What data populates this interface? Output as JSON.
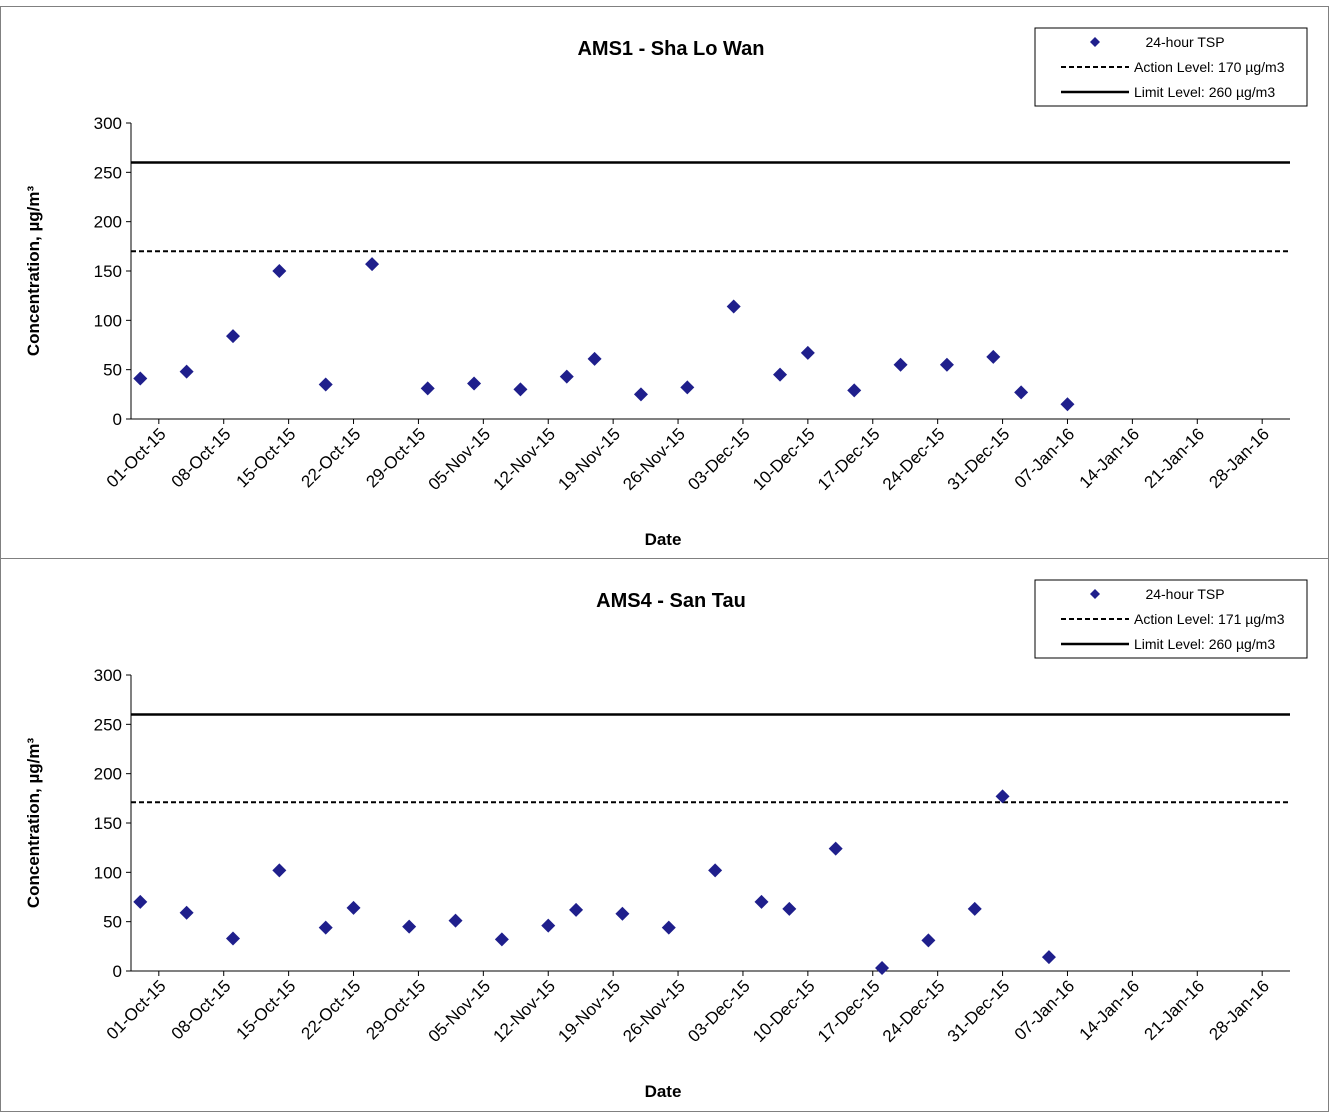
{
  "chart_data": [
    {
      "type": "scatter",
      "title": "AMS1 - Sha Lo Wan",
      "xlabel": "Date",
      "ylabel": "Concentration, µg/m³",
      "ylim": [
        0,
        300
      ],
      "yticks": [
        0,
        50,
        100,
        150,
        200,
        250,
        300
      ],
      "xlim": [
        "2015-09-28",
        "2016-01-31"
      ],
      "xtick_labels": [
        "01-Oct-15",
        "08-Oct-15",
        "15-Oct-15",
        "22-Oct-15",
        "29-Oct-15",
        "05-Nov-15",
        "12-Nov-15",
        "19-Nov-15",
        "26-Nov-15",
        "03-Dec-15",
        "10-Dec-15",
        "17-Dec-15",
        "24-Dec-15",
        "31-Dec-15",
        "07-Jan-16",
        "14-Jan-16",
        "21-Jan-16",
        "28-Jan-16"
      ],
      "grid": false,
      "legend": "top-right",
      "series": [
        {
          "name": "24-hour TSP",
          "marker": "diamond",
          "color": "#1f1f8c",
          "points": [
            [
              "2015-09-29",
              41
            ],
            [
              "2015-10-04",
              48
            ],
            [
              "2015-10-09",
              84
            ],
            [
              "2015-10-14",
              150
            ],
            [
              "2015-10-19",
              35
            ],
            [
              "2015-10-24",
              157
            ],
            [
              "2015-10-30",
              31
            ],
            [
              "2015-11-04",
              36
            ],
            [
              "2015-11-09",
              30
            ],
            [
              "2015-11-14",
              43
            ],
            [
              "2015-11-17",
              61
            ],
            [
              "2015-11-22",
              25
            ],
            [
              "2015-11-27",
              32
            ],
            [
              "2015-12-02",
              114
            ],
            [
              "2015-12-07",
              45
            ],
            [
              "2015-12-10",
              67
            ],
            [
              "2015-12-15",
              29
            ],
            [
              "2015-12-20",
              55
            ],
            [
              "2015-12-25",
              55
            ],
            [
              "2015-12-30",
              63
            ],
            [
              "2016-01-02",
              27
            ],
            [
              "2016-01-07",
              15
            ]
          ]
        },
        {
          "name": "Action Level: 170 µg/m3",
          "line": "dashed",
          "value": 170
        },
        {
          "name": "Limit Level: 260 µg/m3",
          "line": "solid",
          "value": 260
        }
      ]
    },
    {
      "type": "scatter",
      "title": "AMS4 - San Tau",
      "xlabel": "Date",
      "ylabel": "Concentration, µg/m³",
      "ylim": [
        0,
        300
      ],
      "yticks": [
        0,
        50,
        100,
        150,
        200,
        250,
        300
      ],
      "xlim": [
        "2015-09-28",
        "2016-01-31"
      ],
      "xtick_labels": [
        "01-Oct-15",
        "08-Oct-15",
        "15-Oct-15",
        "22-Oct-15",
        "29-Oct-15",
        "05-Nov-15",
        "12-Nov-15",
        "19-Nov-15",
        "26-Nov-15",
        "03-Dec-15",
        "10-Dec-15",
        "17-Dec-15",
        "24-Dec-15",
        "31-Dec-15",
        "07-Jan-16",
        "14-Jan-16",
        "21-Jan-16",
        "28-Jan-16"
      ],
      "grid": false,
      "legend": "top-right",
      "series": [
        {
          "name": "24-hour TSP",
          "marker": "diamond",
          "color": "#1f1f8c",
          "points": [
            [
              "2015-09-29",
              70
            ],
            [
              "2015-10-04",
              59
            ],
            [
              "2015-10-09",
              33
            ],
            [
              "2015-10-14",
              102
            ],
            [
              "2015-10-19",
              44
            ],
            [
              "2015-10-22",
              64
            ],
            [
              "2015-10-28",
              45
            ],
            [
              "2015-11-02",
              51
            ],
            [
              "2015-11-07",
              32
            ],
            [
              "2015-11-12",
              46
            ],
            [
              "2015-11-15",
              62
            ],
            [
              "2015-11-20",
              58
            ],
            [
              "2015-11-25",
              44
            ],
            [
              "2015-11-30",
              102
            ],
            [
              "2015-12-05",
              70
            ],
            [
              "2015-12-08",
              63
            ],
            [
              "2015-12-13",
              124
            ],
            [
              "2015-12-18",
              3
            ],
            [
              "2015-12-23",
              31
            ],
            [
              "2015-12-28",
              63
            ],
            [
              "2015-12-31",
              177
            ],
            [
              "2016-01-05",
              14
            ]
          ]
        },
        {
          "name": "Action Level: 171 µg/m3",
          "line": "dashed",
          "value": 171
        },
        {
          "name": "Limit Level: 260 µg/m3",
          "line": "solid",
          "value": 260
        }
      ]
    }
  ]
}
